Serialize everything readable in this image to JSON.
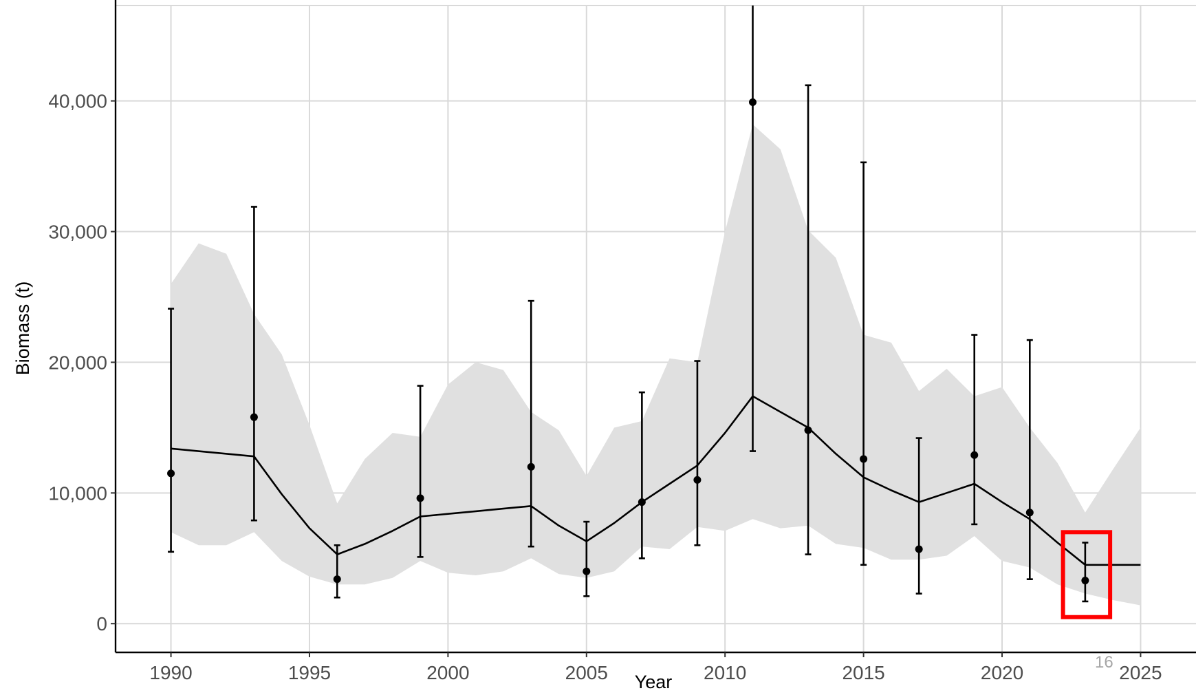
{
  "page_number": "16",
  "chart_data": {
    "type": "line",
    "title": "",
    "xlabel": "Year",
    "ylabel": "Biomass (t)",
    "xlim": [
      1988,
      2027
    ],
    "ylim": [
      -2200,
      47300
    ],
    "x_ticks": [
      1990,
      1995,
      2000,
      2005,
      2010,
      2015,
      2020,
      2025
    ],
    "x_tick_labels": [
      "1990",
      "1995",
      "2000",
      "2005",
      "2010",
      "2015",
      "2020",
      "2025"
    ],
    "y_ticks": [
      0,
      10000,
      20000,
      30000,
      40000
    ],
    "y_tick_labels": [
      "0",
      "10,000",
      "20,000",
      "30,000",
      "40,000"
    ],
    "grid": true,
    "legend": "none",
    "colors": {
      "band": "#e0e0e0",
      "line": "#000000",
      "points": "#000000",
      "highlight": "#ff0000"
    },
    "series": [
      {
        "type": "line",
        "x": [
          1990,
          1993,
          1994,
          1995,
          1996,
          1997,
          1998,
          1999,
          2000,
          2001,
          2002,
          2003,
          2004,
          2005,
          2006,
          2007,
          2008,
          2009,
          2010,
          2011,
          2012,
          2013,
          2014,
          2015,
          2016,
          2017,
          2018,
          2019,
          2020,
          2021,
          2022,
          2023,
          2024,
          2025
        ],
        "y": [
          13400,
          12800,
          9900,
          7300,
          5300,
          6100,
          7100,
          8200,
          8400,
          8600,
          8800,
          9000,
          7500,
          6300,
          7700,
          9300,
          10700,
          12100,
          14600,
          17400,
          16200,
          15000,
          13000,
          11200,
          10200,
          9300,
          10000,
          10700,
          9300,
          8000,
          6200,
          4500,
          4500,
          4500
        ]
      },
      {
        "type": "area",
        "x": [
          1990,
          1991,
          1992,
          1993,
          1994,
          1995,
          1996,
          1997,
          1998,
          1999,
          2000,
          2001,
          2002,
          2003,
          2004,
          2005,
          2006,
          2007,
          2008,
          2009,
          2010,
          2011,
          2012,
          2013,
          2014,
          2015,
          2016,
          2017,
          2018,
          2019,
          2020,
          2021,
          2022,
          2023,
          2024,
          2025
        ],
        "upper": [
          26000,
          29100,
          28300,
          23700,
          20600,
          15200,
          9200,
          12600,
          14600,
          14300,
          18300,
          20000,
          19400,
          16200,
          14800,
          11300,
          15000,
          15500,
          20300,
          20000,
          30000,
          38200,
          36300,
          30100,
          28000,
          22100,
          21500,
          17800,
          19500,
          17400,
          18100,
          15000,
          12300,
          8500,
          11800,
          15000
        ],
        "lower": [
          7000,
          6000,
          6000,
          7000,
          4800,
          3600,
          3000,
          3000,
          3500,
          4800,
          3900,
          3700,
          4000,
          5000,
          3800,
          3500,
          4000,
          5900,
          5700,
          7400,
          7100,
          8000,
          7300,
          7500,
          6100,
          5800,
          4900,
          4900,
          5200,
          6700,
          4800,
          4300,
          3000,
          2300,
          1800,
          1400
        ]
      },
      {
        "type": "scatter",
        "x": [
          1990,
          1993,
          1996,
          1999,
          2003,
          2005,
          2007,
          2009,
          2011,
          2013,
          2015,
          2017,
          2019,
          2021,
          2023
        ],
        "y": [
          11500,
          15800,
          3400,
          9600,
          12000,
          4000,
          9300,
          11000,
          39900,
          14800,
          12600,
          5700,
          12900,
          8500,
          3300
        ],
        "err_low": [
          5500,
          7900,
          2000,
          5100,
          5900,
          2100,
          5000,
          6000,
          13200,
          5300,
          4500,
          2300,
          7600,
          3400,
          1700
        ],
        "err_high": [
          24100,
          31900,
          6000,
          18200,
          24700,
          7800,
          17700,
          20100,
          47300,
          41200,
          35300,
          14200,
          22100,
          21700,
          6200
        ]
      }
    ],
    "annotations": [
      {
        "type": "highlight-box",
        "x_range": [
          2022.2,
          2023.9
        ],
        "y_range": [
          500,
          7000
        ]
      }
    ]
  }
}
